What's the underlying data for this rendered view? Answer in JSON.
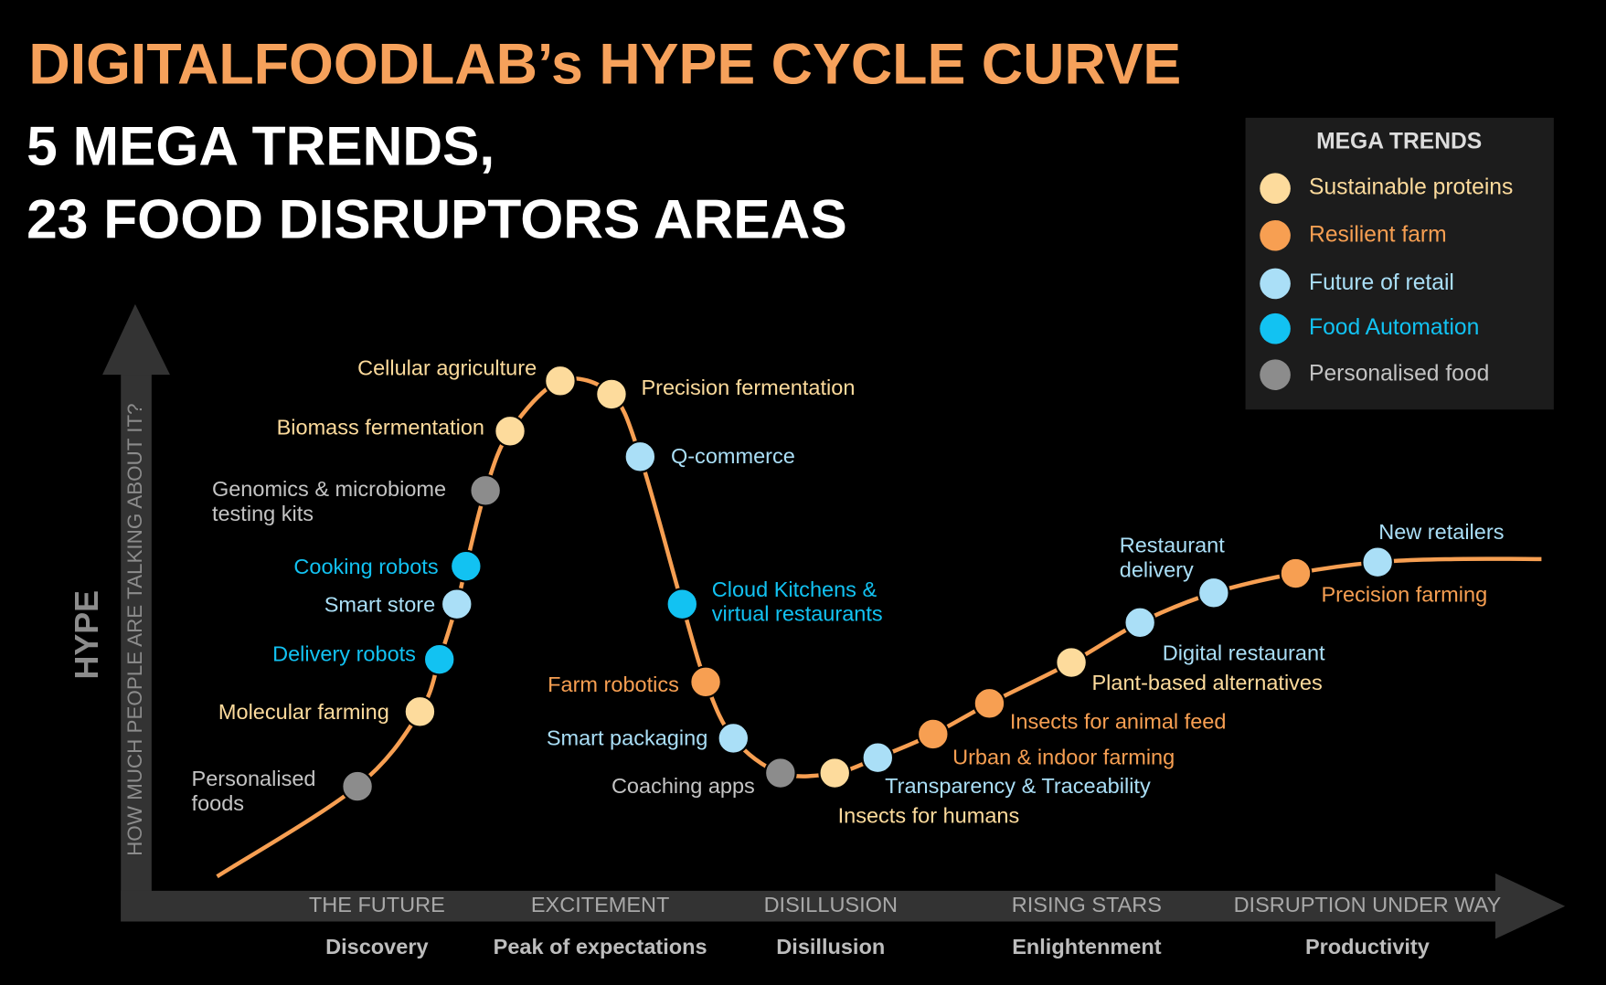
{
  "header": {
    "title": "DIGITALFOODLAB’s HYPE CYCLE CURVE",
    "subtitle": [
      "5 MEGA TRENDS,",
      "23 FOOD DISRUPTORS AREAS"
    ]
  },
  "legend": {
    "title": "MEGA TRENDS",
    "items": [
      {
        "label": "Sustainable proteins",
        "color": "#fddb9c",
        "text_color": "#fddb9c"
      },
      {
        "label": "Resilient farm",
        "color": "#f79f52",
        "text_color": "#f79f52"
      },
      {
        "label": "Future of retail",
        "color": "#aadff7",
        "text_color": "#aadff7"
      },
      {
        "label": "Food Automation",
        "color": "#12c2f2",
        "text_color": "#12c2f2"
      },
      {
        "label": "Personalised food",
        "color": "#8c8c8c",
        "text_color": "#c4c4c4"
      }
    ]
  },
  "axes": {
    "y_label": "HYPE",
    "y_sublabel": "HOW MUCH PEOPLE ARE TALKING ABOUT IT?"
  },
  "phases": [
    {
      "stage": "THE FUTURE",
      "name": "Discovery"
    },
    {
      "stage": "EXCITEMENT",
      "name": "Peak of expectations"
    },
    {
      "stage": "DISILLUSION",
      "name": "Disillusion"
    },
    {
      "stage": "RISING STARS",
      "name": "Enlightenment"
    },
    {
      "stage": "DISRUPTION UNDER WAY",
      "name": "Productivity"
    }
  ],
  "nodes": [
    {
      "label": [
        "Personalised",
        "foods"
      ],
      "trend": 4
    },
    {
      "label": [
        "Molecular farming"
      ],
      "trend": 0
    },
    {
      "label": [
        "Delivery robots"
      ],
      "trend": 3
    },
    {
      "label": [
        "Smart store"
      ],
      "trend": 2
    },
    {
      "label": [
        "Cooking robots"
      ],
      "trend": 3
    },
    {
      "label": [
        "Genomics & microbiome",
        "testing kits"
      ],
      "trend": 4
    },
    {
      "label": [
        "Biomass fermentation"
      ],
      "trend": 0
    },
    {
      "label": [
        "Cellular agriculture"
      ],
      "trend": 0
    },
    {
      "label": [
        "Precision fermentation"
      ],
      "trend": 0
    },
    {
      "label": [
        "Q-commerce"
      ],
      "trend": 2
    },
    {
      "label": [
        "Cloud Kitchens &",
        "virtual restaurants"
      ],
      "trend": 3
    },
    {
      "label": [
        "Farm robotics"
      ],
      "trend": 1
    },
    {
      "label": [
        "Smart packaging"
      ],
      "trend": 2
    },
    {
      "label": [
        "Coaching apps"
      ],
      "trend": 4
    },
    {
      "label": [
        "Insects for humans"
      ],
      "trend": 0
    },
    {
      "label": [
        "Transparency & Traceability"
      ],
      "trend": 2
    },
    {
      "label": [
        "Urban & indoor farming"
      ],
      "trend": 1
    },
    {
      "label": [
        "Insects for animal feed"
      ],
      "trend": 1
    },
    {
      "label": [
        "Plant-based alternatives"
      ],
      "trend": 0
    },
    {
      "label": [
        "Digital restaurant"
      ],
      "trend": 2
    },
    {
      "label": [
        "Restaurant",
        "delivery"
      ],
      "trend": 2
    },
    {
      "label": [
        "Precision farming"
      ],
      "trend": 1
    },
    {
      "label": [
        "New retailers"
      ],
      "trend": 2
    }
  ]
}
